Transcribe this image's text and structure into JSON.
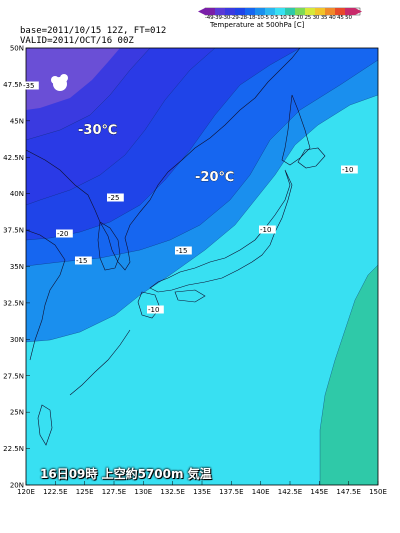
{
  "header": {
    "base": "base=2011/10/15 12Z, FT=012",
    "valid": "VALID=2011/OCT/16 00Z"
  },
  "colorbar": {
    "ticks": "-49-39-30-29-28-18-10-5  0  5  10 15 20 25 30 35 40 45 50",
    "title": "Temperature at 500hPa [C]"
  },
  "caption": "16日09時  上空約5700m  気温",
  "lat_labels": [
    "50N",
    "47.5N",
    "45N",
    "42.5N",
    "40N",
    "37.5N",
    "35N",
    "32.5N",
    "30N",
    "27.5N",
    "25N",
    "22.5N",
    "20N"
  ],
  "lon_labels": [
    "120E",
    "122.5E",
    "125E",
    "127.5E",
    "130E",
    "132.5E",
    "135E",
    "137.5E",
    "140E",
    "142.5E",
    "145E",
    "147.5E",
    "150E"
  ],
  "contour_labels": [
    {
      "name": "contour-label-35",
      "text": "-35"
    },
    {
      "name": "contour-label-30",
      "text": "-30℃"
    },
    {
      "name": "contour-label-20-large",
      "text": "-20℃"
    },
    {
      "name": "contour-label-25",
      "text": "-25"
    },
    {
      "name": "contour-label-20-west",
      "text": "-20"
    },
    {
      "name": "contour-label-15-west",
      "text": "-15"
    },
    {
      "name": "contour-label-15-east",
      "text": "-15"
    },
    {
      "name": "contour-label-10-south",
      "text": "-10"
    },
    {
      "name": "contour-label-10-east",
      "text": "-10"
    },
    {
      "name": "contour-label-10-far-east",
      "text": "-10"
    }
  ],
  "colors": {
    "c35": "#6a4fd6",
    "c30": "#3a3ae0",
    "c25": "#1f44e8",
    "c20": "#1666f0",
    "c15": "#1a8fee",
    "c10": "#2ab8f0",
    "c5": "#38e0f2",
    "c0": "#2fc9a8"
  }
}
